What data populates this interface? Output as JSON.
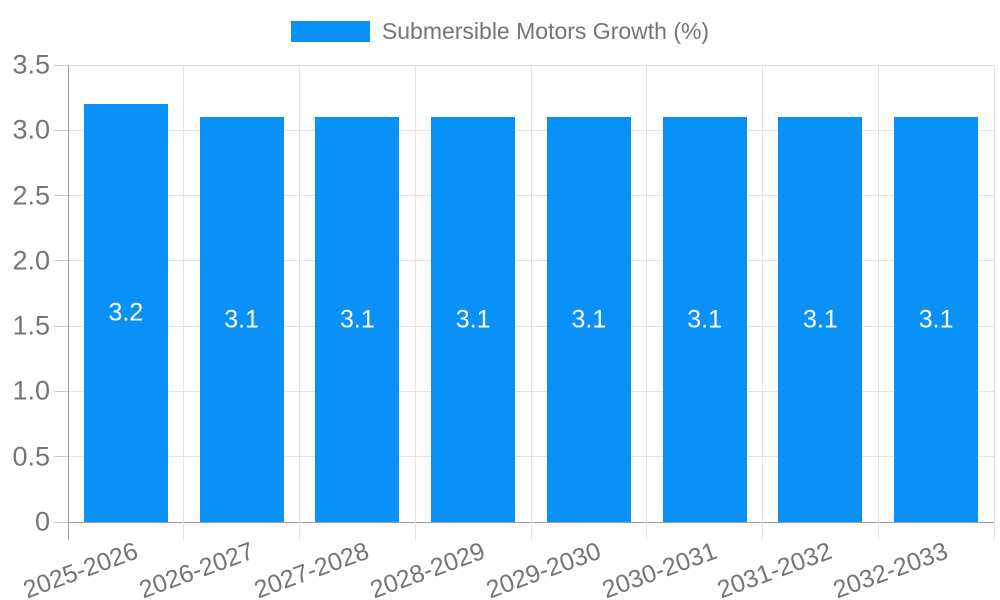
{
  "legend": {
    "series_label": "Submersible Motors Growth (%)"
  },
  "colors": {
    "bar": "#0991f8",
    "axis_line": "#9e9e9e",
    "gridline": "#e3e3e3",
    "tick_mark": "#cccccc",
    "tick_text": "#757575",
    "legend_text": "#757575",
    "annotation_text": "#ffffff",
    "background": "#ffffff"
  },
  "chart_data": {
    "type": "bar",
    "title": "Submersible Motors Growth (%)",
    "categories": [
      "2025-2026",
      "2026-2027",
      "2027-2028",
      "2028-2029",
      "2029-2030",
      "2030-2031",
      "2031-2032",
      "2032-2033"
    ],
    "values": [
      3.2,
      3.1,
      3.1,
      3.1,
      3.1,
      3.1,
      3.1,
      3.1
    ],
    "bar_labels": [
      "3.2",
      "3.1",
      "3.1",
      "3.1",
      "3.1",
      "3.1",
      "3.1",
      "3.1"
    ],
    "xlabel": "",
    "ylabel": "",
    "ylim": [
      0,
      3.5
    ],
    "y_ticks": [
      0,
      0.5,
      1,
      1.5,
      2,
      2.5,
      3,
      3.5
    ],
    "y_tick_labels": [
      "0",
      "0.5",
      "1.0",
      "1.5",
      "2.0",
      "2.5",
      "3.0",
      "3.5"
    ],
    "grid": true,
    "legend_position": "top-center",
    "x_label_rotation_deg": -20
  }
}
